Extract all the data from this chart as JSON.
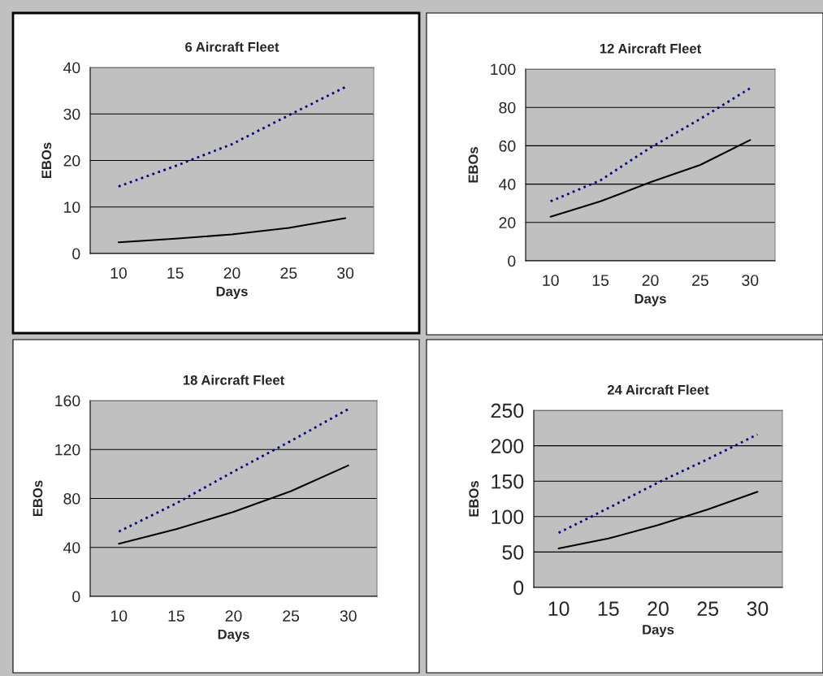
{
  "chart_data": [
    {
      "type": "line",
      "title": "6 Aircraft Fleet",
      "xlabel": "Days",
      "ylabel": "EBOs",
      "categories": [
        "10",
        "15",
        "20",
        "25",
        "30"
      ],
      "ylim": [
        0,
        40
      ],
      "yticks": [
        0,
        10,
        20,
        30,
        40
      ],
      "grid": "y",
      "series": [
        {
          "color": "#000000",
          "line_style": "solid",
          "values": [
            2.4,
            3.2,
            4.1,
            5.5,
            7.6
          ]
        },
        {
          "color": "#000080",
          "line_style": "dotted",
          "values": [
            14.4,
            18.8,
            23.5,
            29.7,
            35.8
          ]
        }
      ]
    },
    {
      "type": "line",
      "title": "12 Aircraft Fleet",
      "xlabel": "Days",
      "ylabel": "EBOs",
      "categories": [
        "10",
        "15",
        "20",
        "25",
        "30"
      ],
      "ylim": [
        0,
        100
      ],
      "yticks": [
        0,
        20,
        40,
        60,
        80,
        100
      ],
      "grid": "y",
      "series": [
        {
          "color": "#000000",
          "line_style": "solid",
          "values": [
            23,
            31,
            41,
            50,
            63
          ]
        },
        {
          "color": "#000080",
          "line_style": "dotted",
          "values": [
            31,
            42,
            59,
            74,
            90
          ]
        }
      ]
    },
    {
      "type": "line",
      "title": "18 Aircraft Fleet",
      "xlabel": "Days",
      "ylabel": "EBOs",
      "categories": [
        "10",
        "15",
        "20",
        "25",
        "30"
      ],
      "ylim": [
        0,
        160
      ],
      "yticks": [
        0,
        40,
        80,
        120,
        160
      ],
      "grid": "y",
      "series": [
        {
          "color": "#000000",
          "line_style": "solid",
          "values": [
            43,
            55,
            69,
            86,
            107
          ]
        },
        {
          "color": "#000080",
          "line_style": "dotted",
          "values": [
            53,
            76,
            102,
            127,
            153
          ]
        }
      ]
    },
    {
      "type": "line",
      "title": "24 Aircraft Fleet",
      "xlabel": "Days",
      "ylabel": "EBOs",
      "categories": [
        "10",
        "15",
        "20",
        "25",
        "30"
      ],
      "ylim": [
        0,
        250
      ],
      "yticks": [
        0,
        50,
        100,
        150,
        200,
        250
      ],
      "grid": "y",
      "series": [
        {
          "color": "#000000",
          "line_style": "solid",
          "values": [
            55,
            69,
            88,
            110,
            135
          ]
        },
        {
          "color": "#000080",
          "line_style": "dotted",
          "values": [
            77,
            112,
            148,
            181,
            216
          ]
        }
      ]
    }
  ]
}
